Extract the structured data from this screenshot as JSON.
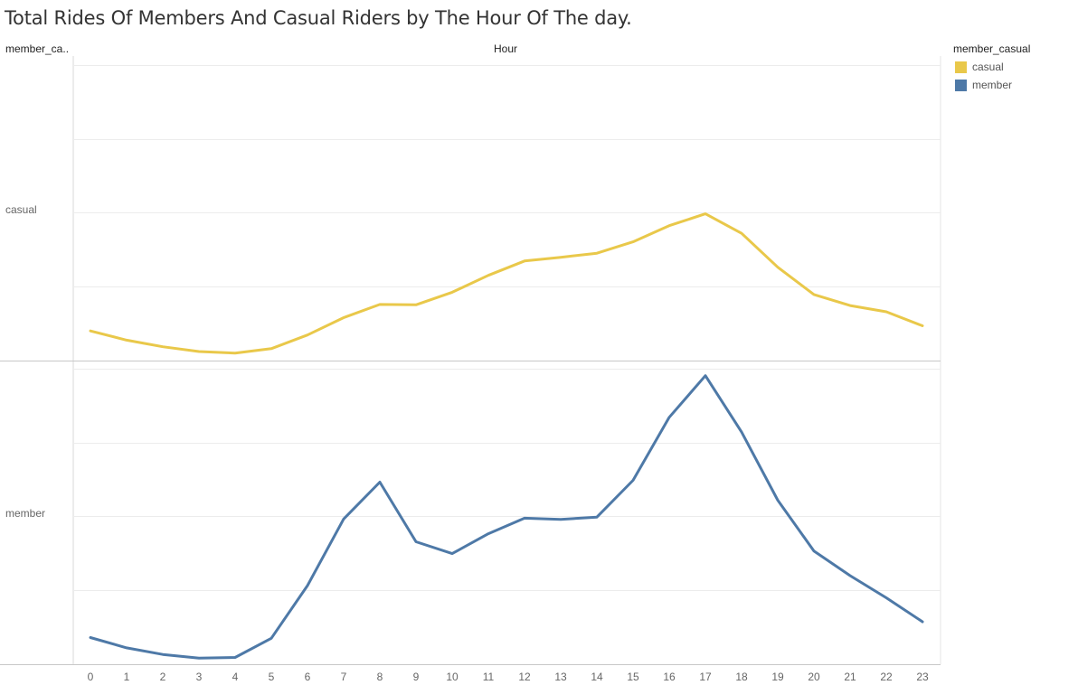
{
  "title": "Total Rides Of Members And Casual Riders by The Hour Of The day.",
  "row_header": "member_ca..",
  "column_header": "Hour",
  "legend": {
    "title": "member_casual",
    "items": [
      {
        "label": "casual",
        "color": "#e9c84a"
      },
      {
        "label": "member",
        "color": "#4e79a7"
      }
    ]
  },
  "chart_data": {
    "type": "line",
    "title": "Total Rides Of Members And Casual Riders by The Hour Of The day.",
    "xlabel": "Hour",
    "x": [
      0,
      1,
      2,
      3,
      4,
      5,
      6,
      7,
      8,
      9,
      10,
      11,
      12,
      13,
      14,
      15,
      16,
      17,
      18,
      19,
      20,
      21,
      22,
      23
    ],
    "grid": true,
    "facets": [
      {
        "name": "casual",
        "color": "#e9c84a",
        "values": [
          7.8,
          5.3,
          3.5,
          2.2,
          1.8,
          3.0,
          6.7,
          11.4,
          15.0,
          14.9,
          18.3,
          22.9,
          26.8,
          27.8,
          28.9,
          32.0,
          36.4,
          39.6,
          34.3,
          25.1,
          17.7,
          14.7,
          13.0,
          9.2
        ],
        "ylim": [
          0,
          80
        ]
      },
      {
        "name": "member",
        "color": "#4e79a7",
        "values": [
          7.0,
          4.2,
          2.4,
          1.4,
          1.6,
          6.8,
          21.1,
          39.2,
          49.2,
          33.0,
          29.8,
          35.2,
          39.4,
          39.1,
          39.7,
          49.7,
          66.8,
          78.1,
          62.8,
          44.3,
          30.5,
          23.8,
          17.8,
          11.3
        ],
        "ylim": [
          0,
          80
        ]
      }
    ]
  }
}
